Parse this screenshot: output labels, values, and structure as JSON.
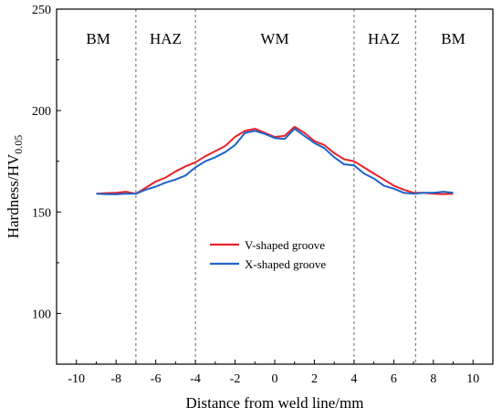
{
  "chart_data": {
    "type": "line",
    "xlabel": "Distance from weld line/mm",
    "ylabel_main": "Hardness/HV",
    "ylabel_sub": "0.05",
    "xlim": [
      -11,
      11
    ],
    "ylim": [
      75,
      250
    ],
    "x_ticks": [
      -10,
      -8,
      -6,
      -4,
      -2,
      0,
      2,
      4,
      6,
      8,
      10
    ],
    "x_tick_labels": [
      "-10",
      "-8",
      "-6",
      "-4",
      "-2",
      "0",
      "2",
      "4",
      "6",
      "8",
      "10"
    ],
    "y_ticks": [
      100,
      150,
      200,
      250
    ],
    "y_tick_labels": [
      "100",
      "150",
      "200",
      "250"
    ],
    "region_boundaries": [
      -7,
      -4,
      4,
      7.1
    ],
    "regions": [
      {
        "label": "BM",
        "x": -8.9
      },
      {
        "label": "HAZ",
        "x": -5.5
      },
      {
        "label": "WM",
        "x": 0
      },
      {
        "label": "HAZ",
        "x": 5.5
      },
      {
        "label": "BM",
        "x": 9
      }
    ],
    "series": [
      {
        "name": "V-shaped groove",
        "color": "#e8222b",
        "x": [
          -9,
          -8.5,
          -8,
          -7.5,
          -7,
          -6.5,
          -6,
          -5.5,
          -5,
          -4.5,
          -4,
          -3.5,
          -3,
          -2.5,
          -2,
          -1.5,
          -1,
          -0.5,
          0,
          0.5,
          1,
          1.5,
          2,
          2.5,
          3,
          3.5,
          4,
          4.5,
          5,
          5.5,
          6,
          6.5,
          7,
          7.5,
          8,
          8.5,
          9
        ],
        "values": [
          159,
          159.3,
          159.5,
          160,
          159,
          162,
          165,
          167,
          170,
          172.5,
          174.5,
          177.5,
          180,
          182.5,
          187,
          190,
          191,
          189,
          187,
          187.5,
          192,
          189,
          185,
          183,
          179,
          176,
          175,
          172,
          169,
          166,
          163,
          161,
          159.5,
          159.5,
          159,
          158.8,
          159
        ]
      },
      {
        "name": "X-shaped groove",
        "color": "#1f63c8",
        "x": [
          -9,
          -8.5,
          -8,
          -7.5,
          -7,
          -6.5,
          -6,
          -5.5,
          -5,
          -4.5,
          -4,
          -3.5,
          -3,
          -2.5,
          -2,
          -1.5,
          -1,
          -0.5,
          0,
          0.5,
          1,
          1.5,
          2,
          2.5,
          3,
          3.5,
          4,
          4.5,
          5,
          5.5,
          6,
          6.5,
          7,
          7.5,
          8,
          8.5,
          9
        ],
        "values": [
          159,
          158.8,
          158.7,
          159,
          159,
          161,
          162.5,
          164.5,
          166,
          168,
          172,
          175,
          177,
          179.5,
          183,
          189,
          190,
          188.5,
          186.5,
          186,
          191,
          187.5,
          184,
          181.5,
          177,
          173.5,
          173,
          169,
          166.5,
          163,
          161.5,
          159.5,
          159,
          159.5,
          159.5,
          160,
          159.5
        ]
      }
    ]
  }
}
